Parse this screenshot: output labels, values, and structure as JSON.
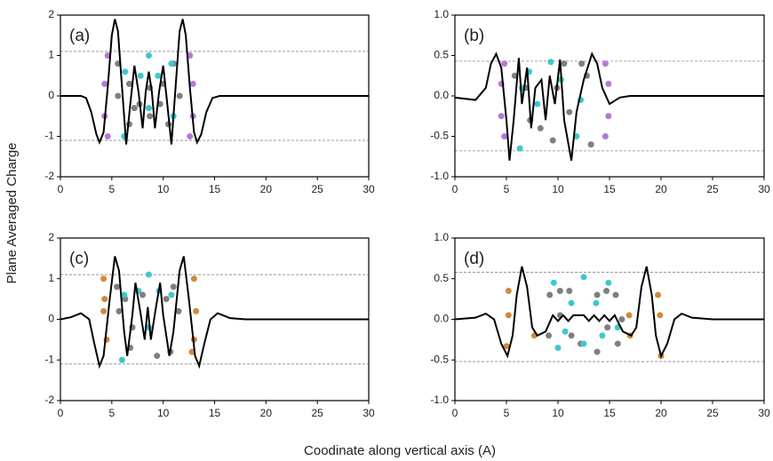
{
  "ylabel": "Plane Averaged Charge",
  "xlabel": "Coodinate along vertical axis (A)",
  "chart_data": [
    {
      "type": "line",
      "label": "(a)",
      "color": "#000000",
      "x": [
        0,
        2,
        2.5,
        3,
        3.5,
        3.8,
        4.2,
        4.6,
        5,
        5.3,
        5.6,
        6,
        6.4,
        6.8,
        7.2,
        7.6,
        8,
        8.3,
        8.6,
        8.9,
        9.2,
        9.6,
        10,
        10.4,
        10.8,
        11.2,
        11.6,
        11.9,
        12.2,
        12.6,
        13,
        13.3,
        13.7,
        14.2,
        14.8,
        15.5,
        30
      ],
      "values": [
        0,
        0,
        -0.05,
        -0.4,
        -0.95,
        -1.15,
        -0.9,
        0.2,
        1.5,
        1.9,
        1.6,
        0.2,
        -1.2,
        -0.2,
        0.75,
        0.1,
        -0.8,
        0.1,
        0.6,
        0.1,
        -0.8,
        0.1,
        0.75,
        -0.2,
        -1.2,
        0.2,
        1.6,
        1.9,
        1.5,
        0.2,
        -0.9,
        -1.15,
        -0.95,
        -0.4,
        -0.05,
        0,
        0
      ],
      "reference_lines": [
        1.1,
        -1.1
      ],
      "atoms": [
        {
          "color": "#b07ad6",
          "x": [
            4.6,
            4.3,
            4.3,
            4.6,
            12.6,
            12.9,
            12.9,
            12.6
          ],
          "y": [
            1,
            0.3,
            -0.5,
            -1,
            1,
            0.3,
            -0.5,
            -1
          ]
        },
        {
          "color": "#7f7f7f",
          "x": [
            5.6,
            6.7,
            5.6,
            7.2,
            6.7,
            10,
            11,
            11.6,
            10.5,
            8.7,
            8.7,
            7.7,
            9.7
          ],
          "y": [
            0.8,
            0.3,
            0,
            -0.3,
            -0.7,
            0.3,
            0.8,
            0,
            -0.7,
            0.2,
            -0.5,
            -0.2,
            -0.2
          ]
        },
        {
          "color": "#3cc8d0",
          "x": [
            6.2,
            7.8,
            8.6,
            9.5,
            10.8,
            6.3,
            11,
            8.6
          ],
          "y": [
            -1,
            0.5,
            1,
            0.5,
            0.8,
            0.6,
            -0.5,
            -0.3
          ]
        }
      ],
      "xlim": [
        0,
        30
      ],
      "xticks": [
        0,
        5,
        10,
        15,
        20,
        25,
        30
      ],
      "ylim": [
        -2,
        2
      ],
      "yticks": [
        -2,
        -1,
        0,
        1,
        2
      ]
    },
    {
      "type": "line",
      "label": "(b)",
      "color": "#000000",
      "x": [
        0,
        2,
        3,
        3.5,
        4,
        4.5,
        5,
        5.3,
        5.7,
        6.2,
        6.5,
        7,
        7.4,
        7.8,
        8.4,
        8.8,
        9.2,
        9.7,
        10.2,
        10.6,
        11.3,
        11.8,
        12.5,
        13.3,
        13.8,
        14.3,
        15,
        16,
        17,
        30
      ],
      "values": [
        -0.02,
        -0.05,
        0.1,
        0.4,
        0.52,
        0.35,
        -0.3,
        -0.8,
        -0.3,
        0.47,
        -0.1,
        0.35,
        -0.4,
        0.1,
        0.2,
        -0.3,
        0.25,
        -0.1,
        0.45,
        -0.3,
        -0.8,
        -0.2,
        0.2,
        0.52,
        0.4,
        0.1,
        -0.1,
        -0.02,
        0,
        0
      ],
      "reference_lines": [
        0.43,
        -0.68
      ],
      "atoms": [
        {
          "color": "#b07ad6",
          "x": [
            4.8,
            4.5,
            4.5,
            4.8,
            14.6,
            14.9,
            14.9,
            14.6
          ],
          "y": [
            0.4,
            0.15,
            -0.25,
            -0.5,
            0.4,
            0.15,
            -0.25,
            -0.5
          ]
        },
        {
          "color": "#7f7f7f",
          "x": [
            5.8,
            6.9,
            7.3,
            8.3,
            9.5,
            10.6,
            11.1,
            12.3,
            12.8,
            13.2,
            9.9
          ],
          "y": [
            0.25,
            0.1,
            -0.3,
            -0.4,
            -0.55,
            0.4,
            -0.2,
            0.4,
            0.25,
            -0.6,
            0.1
          ]
        },
        {
          "color": "#3cc8d0",
          "x": [
            6.3,
            7.2,
            8,
            9.3,
            10.3,
            11.8,
            12.2,
            6.5
          ],
          "y": [
            -0.65,
            0.3,
            -0.1,
            0.42,
            0.2,
            -0.5,
            -0.05,
            0.1
          ]
        }
      ],
      "xlim": [
        0,
        30
      ],
      "xticks": [
        0,
        5,
        10,
        15,
        20,
        25,
        30
      ],
      "ylim": [
        -1,
        1
      ],
      "yticks": [
        {
          "value": -1,
          "label": "-1.0"
        },
        -0.5,
        {
          "value": 0,
          "label": "0.0"
        },
        0.5,
        {
          "value": 1,
          "label": "1.0"
        }
      ]
    },
    {
      "type": "line",
      "label": "(c)",
      "color": "#000000",
      "x": [
        0,
        1,
        2,
        2.8,
        3.3,
        3.8,
        4.2,
        4.8,
        5.3,
        5.7,
        6.2,
        6.5,
        7,
        7.3,
        7.7,
        8.2,
        8.5,
        8.8,
        9.3,
        9.7,
        10,
        10.6,
        11,
        11.6,
        12,
        12.5,
        13.1,
        13.5,
        14,
        14.6,
        15.3,
        16.5,
        18,
        30
      ],
      "values": [
        0,
        0.05,
        0.15,
        0,
        -0.6,
        -1.15,
        -0.9,
        0.5,
        1.55,
        1.2,
        -0.3,
        -0.9,
        0.1,
        0.9,
        0.3,
        -0.5,
        0.3,
        -0.5,
        0.3,
        0.9,
        0.1,
        -0.9,
        -0.3,
        1.2,
        1.55,
        0.5,
        -0.9,
        -1.15,
        -0.6,
        0,
        0.15,
        0.03,
        0,
        0
      ],
      "reference_lines": [
        1.1,
        -1.1
      ],
      "atoms": [
        {
          "color": "#d08a3a",
          "x": [
            4.2,
            4.2,
            4.5,
            13,
            13.2,
            13,
            4.3,
            12.8
          ],
          "y": [
            1,
            0.2,
            -0.5,
            1,
            0.2,
            -0.5,
            0.5,
            -0.8
          ]
        },
        {
          "color": "#7f7f7f",
          "x": [
            5.5,
            6.3,
            7,
            6.8,
            5.7,
            10.3,
            11,
            11.5,
            10.7,
            9.4,
            8
          ],
          "y": [
            0.8,
            0.5,
            -0.2,
            -0.7,
            0.2,
            0.5,
            0.8,
            0.2,
            -0.8,
            -0.9,
            0.6
          ]
        },
        {
          "color": "#3cc8d0",
          "x": [
            6,
            7.6,
            8.6,
            9.6,
            10.8,
            6.2,
            8.6
          ],
          "y": [
            -1,
            0.7,
            1.1,
            0.7,
            0.6,
            0.6,
            -0.2
          ]
        }
      ],
      "xlim": [
        0,
        30
      ],
      "xticks": [
        0,
        5,
        10,
        15,
        20,
        25,
        30
      ],
      "ylim": [
        -2,
        2
      ],
      "yticks": [
        -2,
        -1,
        0,
        1,
        2
      ]
    },
    {
      "type": "line",
      "label": "(d)",
      "color": "#000000",
      "x": [
        0,
        2,
        3,
        3.8,
        4.5,
        5.1,
        5.6,
        6,
        6.5,
        7,
        7.5,
        8,
        8.8,
        9.5,
        10,
        10.5,
        11,
        11.5,
        12.5,
        13,
        13.5,
        14,
        14.5,
        15,
        15.5,
        16.3,
        17.1,
        17.6,
        18.1,
        18.6,
        19.1,
        19.5,
        20,
        20.6,
        21.3,
        22,
        23,
        25,
        30
      ],
      "values": [
        0,
        0.02,
        0.07,
        0,
        -0.3,
        -0.45,
        -0.2,
        0.3,
        0.65,
        0.4,
        -0.1,
        -0.2,
        -0.15,
        0.05,
        -0.02,
        0.05,
        -0.02,
        0.05,
        0.05,
        -0.02,
        0.05,
        -0.02,
        0.05,
        -0.02,
        0.05,
        -0.15,
        -0.2,
        -0.1,
        0.4,
        0.65,
        0.3,
        -0.2,
        -0.45,
        -0.3,
        0,
        0.07,
        0.02,
        0,
        0
      ],
      "reference_lines": [
        0.58,
        -0.52
      ],
      "atoms": [
        {
          "color": "#d08a3a",
          "x": [
            5.2,
            5.2,
            5,
            7.7,
            17,
            19.7,
            19.9,
            20,
            16.9
          ],
          "y": [
            0.35,
            0.05,
            -0.33,
            -0.2,
            -0.2,
            0.3,
            0.05,
            -0.45,
            0.05
          ]
        },
        {
          "color": "#7f7f7f",
          "x": [
            9.2,
            10.2,
            11.1,
            10.2,
            11.3,
            12.2,
            13.8,
            14.7,
            15.6,
            16.2,
            14.8,
            13.8,
            9.1,
            15.8
          ],
          "y": [
            0.3,
            0.35,
            0.35,
            0.05,
            -0.2,
            -0.3,
            0.3,
            0.35,
            0.3,
            0,
            -0.1,
            -0.4,
            -0.2,
            -0.3
          ]
        },
        {
          "color": "#3cc8d0",
          "x": [
            10,
            11.3,
            12.5,
            13.7,
            14.9,
            10.7,
            12.5,
            14.3,
            15.8,
            9.6
          ],
          "y": [
            -0.35,
            0.2,
            0.52,
            0.2,
            0.45,
            -0.15,
            -0.3,
            -0.2,
            -0.1,
            0.45
          ]
        }
      ],
      "xlim": [
        0,
        30
      ],
      "xticks": [
        0,
        5,
        10,
        15,
        20,
        25,
        30
      ],
      "ylim": [
        -1,
        1
      ],
      "yticks": [
        {
          "value": -1,
          "label": "-1.0"
        },
        -0.5,
        {
          "value": 0,
          "label": "0.0"
        },
        0.5,
        {
          "value": 1,
          "label": "1.0"
        }
      ]
    }
  ]
}
